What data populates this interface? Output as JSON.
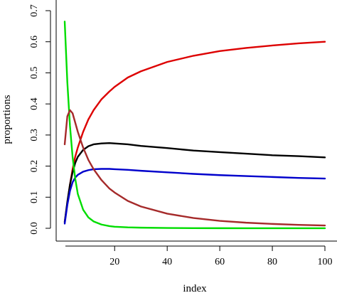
{
  "chart_data": {
    "type": "line",
    "title": "",
    "xlabel": "index",
    "ylabel": "proportions",
    "xlim": [
      1,
      100
    ],
    "ylim": [
      0,
      0.7
    ],
    "x_ticks": [
      20,
      40,
      60,
      80,
      100
    ],
    "y_ticks": [
      0.0,
      0.1,
      0.2,
      0.3,
      0.4,
      0.5,
      0.6,
      0.7
    ],
    "grid": false,
    "x": [
      1,
      2,
      3,
      4,
      5,
      6,
      8,
      10,
      12,
      15,
      18,
      20,
      25,
      30,
      40,
      50,
      60,
      70,
      80,
      90,
      100
    ],
    "series": [
      {
        "color": "#dd0000",
        "values": [
          0.02,
          0.08,
          0.14,
          0.19,
          0.23,
          0.26,
          0.31,
          0.35,
          0.38,
          0.415,
          0.44,
          0.455,
          0.485,
          0.505,
          0.535,
          0.555,
          0.57,
          0.58,
          0.588,
          0.595,
          0.6
        ]
      },
      {
        "color": "#000000",
        "values": [
          0.02,
          0.085,
          0.14,
          0.18,
          0.21,
          0.23,
          0.252,
          0.264,
          0.27,
          0.273,
          0.274,
          0.273,
          0.27,
          0.265,
          0.258,
          0.25,
          0.245,
          0.24,
          0.235,
          0.232,
          0.228
        ]
      },
      {
        "color": "#0000cc",
        "values": [
          0.015,
          0.075,
          0.12,
          0.148,
          0.163,
          0.172,
          0.182,
          0.187,
          0.19,
          0.191,
          0.191,
          0.19,
          0.188,
          0.185,
          0.18,
          0.175,
          0.171,
          0.168,
          0.165,
          0.162,
          0.16
        ]
      },
      {
        "color": "#00dd00",
        "values": [
          0.665,
          0.47,
          0.33,
          0.23,
          0.16,
          0.11,
          0.06,
          0.035,
          0.022,
          0.012,
          0.007,
          0.005,
          0.003,
          0.002,
          0.001,
          0.0005,
          0.0003,
          0.0002,
          0.0001,
          0.0001,
          0.0001
        ]
      },
      {
        "color": "#a52a2a",
        "values": [
          0.27,
          0.36,
          0.38,
          0.37,
          0.34,
          0.31,
          0.26,
          0.22,
          0.19,
          0.155,
          0.128,
          0.115,
          0.088,
          0.07,
          0.047,
          0.033,
          0.024,
          0.018,
          0.014,
          0.011,
          0.009
        ]
      }
    ]
  }
}
